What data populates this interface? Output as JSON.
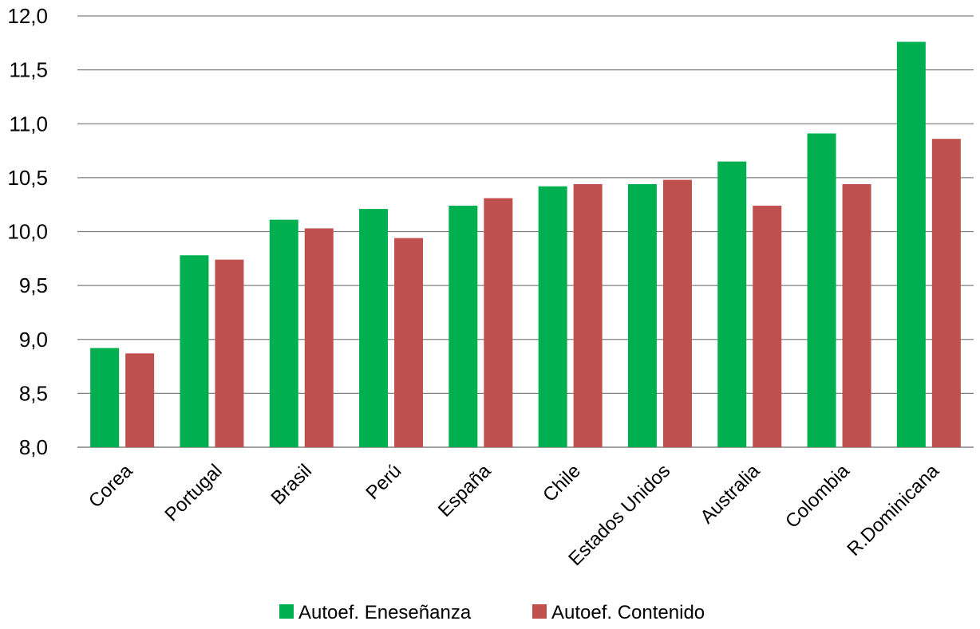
{
  "chart_data": {
    "type": "bar",
    "title": "",
    "xlabel": "",
    "ylabel": "",
    "categories": [
      "Corea",
      "Portugal",
      "Brasil",
      "Perú",
      "España",
      "Chile",
      "Estados Unidos",
      "Australia",
      "Colombia",
      "R.Dominicana"
    ],
    "series": [
      {
        "name": "Autoef. Eneseñanza",
        "color": "#00b050",
        "values": [
          8.92,
          9.78,
          10.11,
          10.21,
          10.24,
          10.42,
          10.44,
          10.65,
          10.91,
          11.76
        ]
      },
      {
        "name": "Autoef. Contenido",
        "color": "#c0504d",
        "values": [
          8.87,
          9.74,
          10.03,
          9.94,
          10.31,
          10.44,
          10.48,
          10.24,
          10.44,
          10.86
        ]
      }
    ],
    "ylim": [
      8.0,
      12.0
    ],
    "yticks": [
      "8,0",
      "8,5",
      "9,0",
      "9,5",
      "10,0",
      "10,5",
      "11,0",
      "11,5",
      "12,0"
    ],
    "grid": true,
    "gridline_color": "#808080",
    "legend_position": "bottom"
  }
}
